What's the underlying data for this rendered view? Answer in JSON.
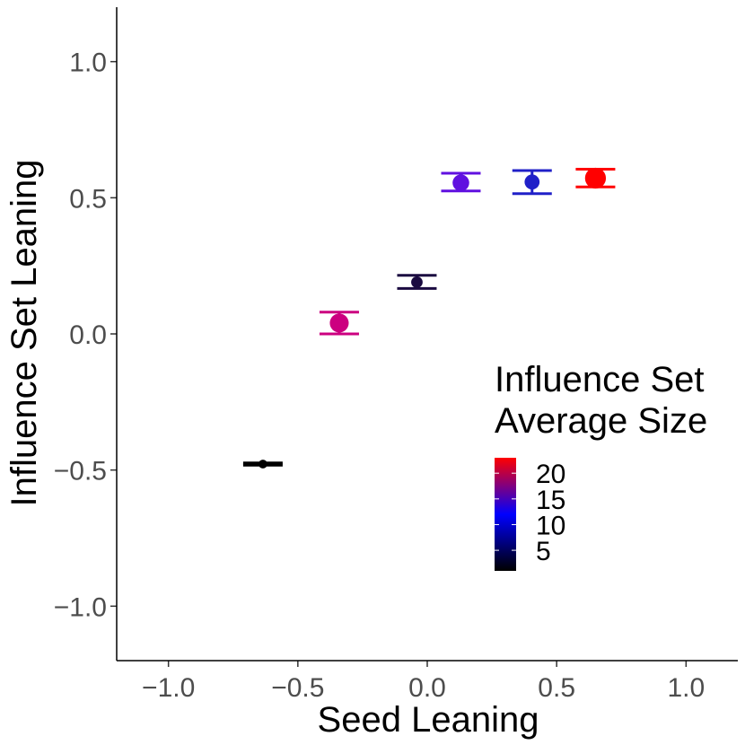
{
  "chart_data": {
    "type": "scatter",
    "title": "",
    "xlabel": "Seed Leaning",
    "ylabel": "Influence Set Leaning",
    "xlim": [
      -1.2,
      1.2
    ],
    "ylim": [
      -1.2,
      1.2
    ],
    "x_ticks": [
      -1.0,
      -0.5,
      0.0,
      0.5,
      1.0
    ],
    "x_tick_labels": [
      "−1.0",
      "−0.5",
      "0.0",
      "0.5",
      "1.0"
    ],
    "y_ticks": [
      -1.0,
      -0.5,
      0.0,
      0.5,
      1.0
    ],
    "y_tick_labels": [
      "−1.0",
      "−0.5",
      "0.0",
      "0.5",
      "1.0"
    ],
    "grid": false,
    "legend": {
      "title_lines": [
        "Influence Set",
        "Average Size"
      ],
      "placement": "right-center",
      "min": 1,
      "max": 23,
      "breaks": [
        20,
        15,
        10,
        5
      ],
      "break_labels": [
        "20",
        "15",
        "10",
        "5"
      ],
      "gradient": [
        "#000000",
        "#0000ff",
        "#ff0000"
      ]
    },
    "points": [
      {
        "x": -0.635,
        "y": -0.478,
        "ymin": -0.482,
        "ymax": -0.474,
        "size": 1.5,
        "color": "#000000"
      },
      {
        "x": -0.34,
        "y": 0.04,
        "ymin": 0.0,
        "ymax": 0.08,
        "size": 17,
        "color": "#cc0080"
      },
      {
        "x": -0.04,
        "y": 0.19,
        "ymin": 0.167,
        "ymax": 0.215,
        "size": 4,
        "color": "#1a0a40"
      },
      {
        "x": 0.13,
        "y": 0.555,
        "ymin": 0.525,
        "ymax": 0.59,
        "size": 12,
        "color": "#6010e0"
      },
      {
        "x": 0.405,
        "y": 0.558,
        "ymin": 0.515,
        "ymax": 0.6,
        "size": 9,
        "color": "#2020c8"
      },
      {
        "x": 0.65,
        "y": 0.572,
        "ymin": 0.54,
        "ymax": 0.605,
        "size": 22,
        "color": "#ff0000"
      }
    ]
  }
}
